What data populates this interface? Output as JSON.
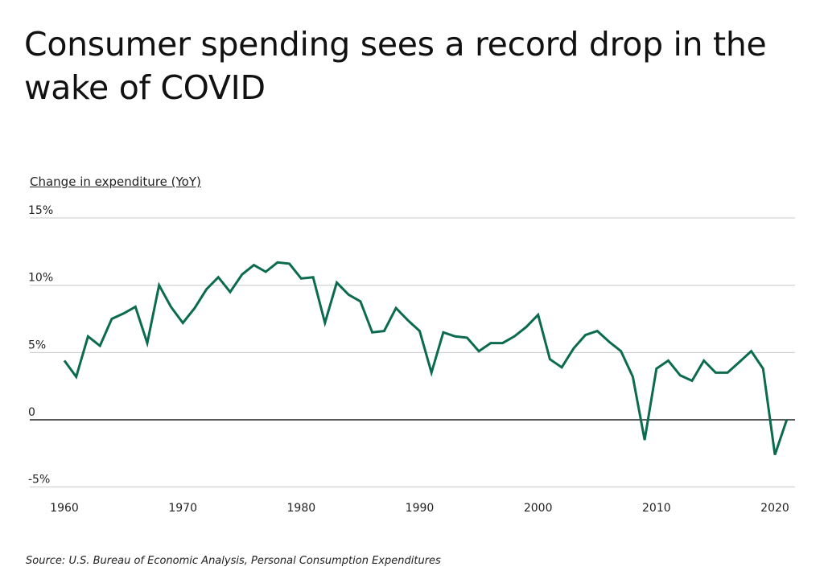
{
  "chart_data": {
    "type": "line",
    "title": "Consumer spending sees a record drop in the wake of COVID",
    "ylabel": "Change in expenditure (YoY)",
    "xlabel": "",
    "source": "Source:  U.S. Bureau of Economic Analysis, Personal Consumption Expenditures",
    "ylim": [
      -5,
      15
    ],
    "xlim": [
      1960,
      2021
    ],
    "yticks": [
      {
        "v": 15,
        "label": "15%"
      },
      {
        "v": 10,
        "label": "10%"
      },
      {
        "v": 5,
        "label": "5%"
      },
      {
        "v": 0,
        "label": "0"
      },
      {
        "v": -5,
        "label": "-5%"
      }
    ],
    "xticks": [
      {
        "v": 1960,
        "label": "1960"
      },
      {
        "v": 1970,
        "label": "1970"
      },
      {
        "v": 1980,
        "label": "1980"
      },
      {
        "v": 1990,
        "label": "1990"
      },
      {
        "v": 2000,
        "label": "2000"
      },
      {
        "v": 2010,
        "label": "2010"
      },
      {
        "v": 2020,
        "label": "2020"
      }
    ],
    "grid": true,
    "series": [
      {
        "name": "Change in expenditure",
        "color": "#0b6b4f",
        "x": [
          1960,
          1961,
          1962,
          1963,
          1964,
          1965,
          1966,
          1967,
          1968,
          1969,
          1970,
          1971,
          1972,
          1973,
          1974,
          1975,
          1976,
          1977,
          1978,
          1979,
          1980,
          1981,
          1982,
          1983,
          1984,
          1985,
          1986,
          1987,
          1988,
          1989,
          1990,
          1991,
          1992,
          1993,
          1994,
          1995,
          1996,
          1997,
          1998,
          1999,
          2000,
          2001,
          2002,
          2003,
          2004,
          2005,
          2006,
          2007,
          2008,
          2009,
          2010,
          2011,
          2012,
          2013,
          2014,
          2015,
          2016,
          2017,
          2018,
          2019,
          2020,
          2021
        ],
        "values": [
          4.4,
          3.2,
          6.2,
          5.5,
          7.5,
          7.9,
          8.4,
          5.7,
          10.0,
          8.4,
          7.2,
          8.3,
          9.7,
          10.6,
          9.5,
          10.8,
          11.5,
          11.0,
          11.7,
          11.6,
          10.5,
          10.6,
          7.2,
          10.2,
          9.3,
          8.8,
          6.5,
          6.6,
          8.3,
          7.4,
          6.6,
          3.5,
          6.5,
          6.2,
          6.1,
          5.1,
          5.7,
          5.7,
          6.2,
          6.9,
          7.8,
          4.5,
          3.9,
          5.3,
          6.3,
          6.6,
          5.8,
          5.1,
          3.2,
          -1.5,
          3.8,
          4.4,
          3.3,
          2.9,
          4.4,
          3.5,
          3.5,
          4.3,
          5.1,
          3.8,
          -2.6,
          0.0
        ]
      }
    ]
  }
}
